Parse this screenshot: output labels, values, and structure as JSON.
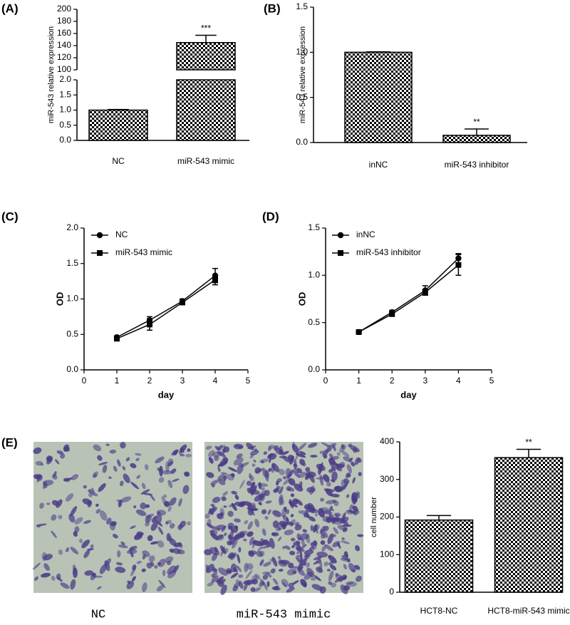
{
  "chart_data": [
    {
      "type": "bar",
      "panel": "(A)",
      "ylabel": "miR-543 relative expression",
      "categories": [
        "NC",
        "miR-543 mimic"
      ],
      "values": [
        1.0,
        145
      ],
      "errors": [
        0.02,
        12
      ],
      "value_annotations": [
        null,
        "***"
      ],
      "color": "#000000",
      "pattern": "checkered",
      "ylim": [
        0,
        200
      ],
      "y_break": [
        2,
        100
      ],
      "yticks": [
        {
          "value": 0,
          "label": "0.0"
        },
        {
          "value": 0.5,
          "label": "0.5"
        },
        {
          "value": 1,
          "label": "1.0"
        },
        {
          "value": 1.5,
          "label": "1.5"
        },
        {
          "value": 2,
          "label": "2.0"
        },
        100,
        120,
        140,
        160,
        180,
        200
      ]
    },
    {
      "type": "bar",
      "panel": "(B)",
      "ylabel": "miR-543 relative expression",
      "categories": [
        "inNC",
        "miR-543 inhibitor"
      ],
      "values": [
        1.0,
        0.08
      ],
      "errors": [
        0.005,
        0.07
      ],
      "value_annotations": [
        null,
        "**"
      ],
      "color": "#000000",
      "pattern": "checkered",
      "ylim": [
        0,
        1.5
      ],
      "yticks": [
        {
          "value": 0,
          "label": "0.0"
        },
        {
          "value": 0.5,
          "label": "0.5"
        },
        {
          "value": 1,
          "label": "1.0"
        },
        {
          "value": 1.5,
          "label": "1.5"
        }
      ]
    },
    {
      "type": "line",
      "panel": "(C)",
      "xlabel": "day",
      "ylabel": "OD",
      "x": [
        1,
        2,
        3,
        4
      ],
      "series": [
        {
          "name": "NC",
          "color": "#000000",
          "marker": "circle",
          "values": [
            0.46,
            0.7,
            0.97,
            1.33
          ],
          "errors": [
            0.02,
            0.05,
            0.03,
            0.1
          ]
        },
        {
          "name": "miR-543 mimic",
          "color": "#000000",
          "marker": "square",
          "values": [
            0.44,
            0.64,
            0.95,
            1.27
          ],
          "errors": [
            0.02,
            0.08,
            0.03,
            0.07
          ]
        }
      ],
      "xlim": [
        0,
        5
      ],
      "xticks": [
        0,
        1,
        2,
        3,
        4,
        5
      ],
      "ylim": [
        0,
        2
      ],
      "yticks": [
        {
          "value": 0,
          "label": "0.0"
        },
        {
          "value": 0.5,
          "label": "0.5"
        },
        {
          "value": 1,
          "label": "1.0"
        },
        {
          "value": 1.5,
          "label": "1.5"
        },
        {
          "value": 2,
          "label": "2.0"
        }
      ]
    },
    {
      "type": "line",
      "panel": "(D)",
      "xlabel": "day",
      "ylabel": "OD",
      "x": [
        1,
        2,
        3,
        4
      ],
      "series": [
        {
          "name": "inNC",
          "color": "#000000",
          "marker": "circle",
          "values": [
            0.4,
            0.61,
            0.84,
            1.18
          ],
          "errors": [
            0.01,
            0.02,
            0.05,
            0.05
          ]
        },
        {
          "name": "miR-543 inhibitor",
          "color": "#000000",
          "marker": "square",
          "values": [
            0.4,
            0.59,
            0.82,
            1.11
          ],
          "errors": [
            0.01,
            0.02,
            0.03,
            0.11
          ]
        }
      ],
      "xlim": [
        0,
        5
      ],
      "xticks": [
        0,
        1,
        2,
        3,
        4,
        5
      ],
      "ylim": [
        0,
        1.5
      ],
      "yticks": [
        {
          "value": 0,
          "label": "0.0"
        },
        {
          "value": 0.5,
          "label": "0.5"
        },
        {
          "value": 1,
          "label": "1.0"
        },
        {
          "value": 1.5,
          "label": "1.5"
        }
      ]
    },
    {
      "type": "bar",
      "ylabel": "cell number",
      "categories": [
        "HCT8-NC",
        "HCT8-miR-543 mimic"
      ],
      "values": [
        192,
        358
      ],
      "errors": [
        12,
        22
      ],
      "value_annotations": [
        null,
        "**"
      ],
      "color": "#000000",
      "pattern": "checkered",
      "ylim": [
        0,
        400
      ],
      "yticks": [
        0,
        100,
        200,
        300,
        400
      ]
    }
  ],
  "micrographs": {
    "panel": "(E)",
    "captions": [
      "NC",
      "miR-543 mimic"
    ]
  }
}
